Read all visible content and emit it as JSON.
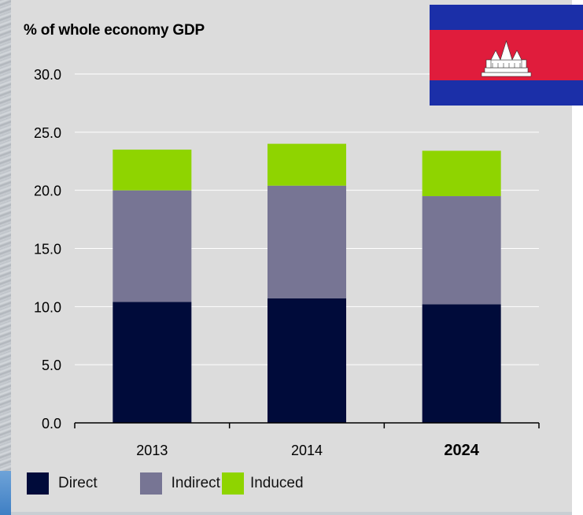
{
  "chart_data": {
    "type": "bar",
    "stacked": true,
    "title": "% of whole economy GDP",
    "categories": [
      "2013",
      "2014",
      "2024"
    ],
    "series": [
      {
        "name": "Direct",
        "values": [
          10.4,
          10.7,
          10.2
        ],
        "color": "#000b3a"
      },
      {
        "name": "Indirect",
        "values": [
          9.6,
          9.7,
          9.3
        ],
        "color": "#777594"
      },
      {
        "name": "Induced",
        "values": [
          3.5,
          3.6,
          3.9
        ],
        "color": "#8fd400"
      }
    ],
    "yticks": [
      "0.0",
      "5.0",
      "10.0",
      "15.0",
      "20.0",
      "25.0",
      "30.0"
    ],
    "ylim": [
      0,
      30
    ],
    "grid": true,
    "legend": "bottom",
    "bold_categories": [
      "2024"
    ]
  },
  "flag": {
    "icon": "cambodia-flag-icon",
    "colors": {
      "blue": "#1b2fa8",
      "red": "#e01c3c",
      "white": "#ffffff"
    }
  }
}
